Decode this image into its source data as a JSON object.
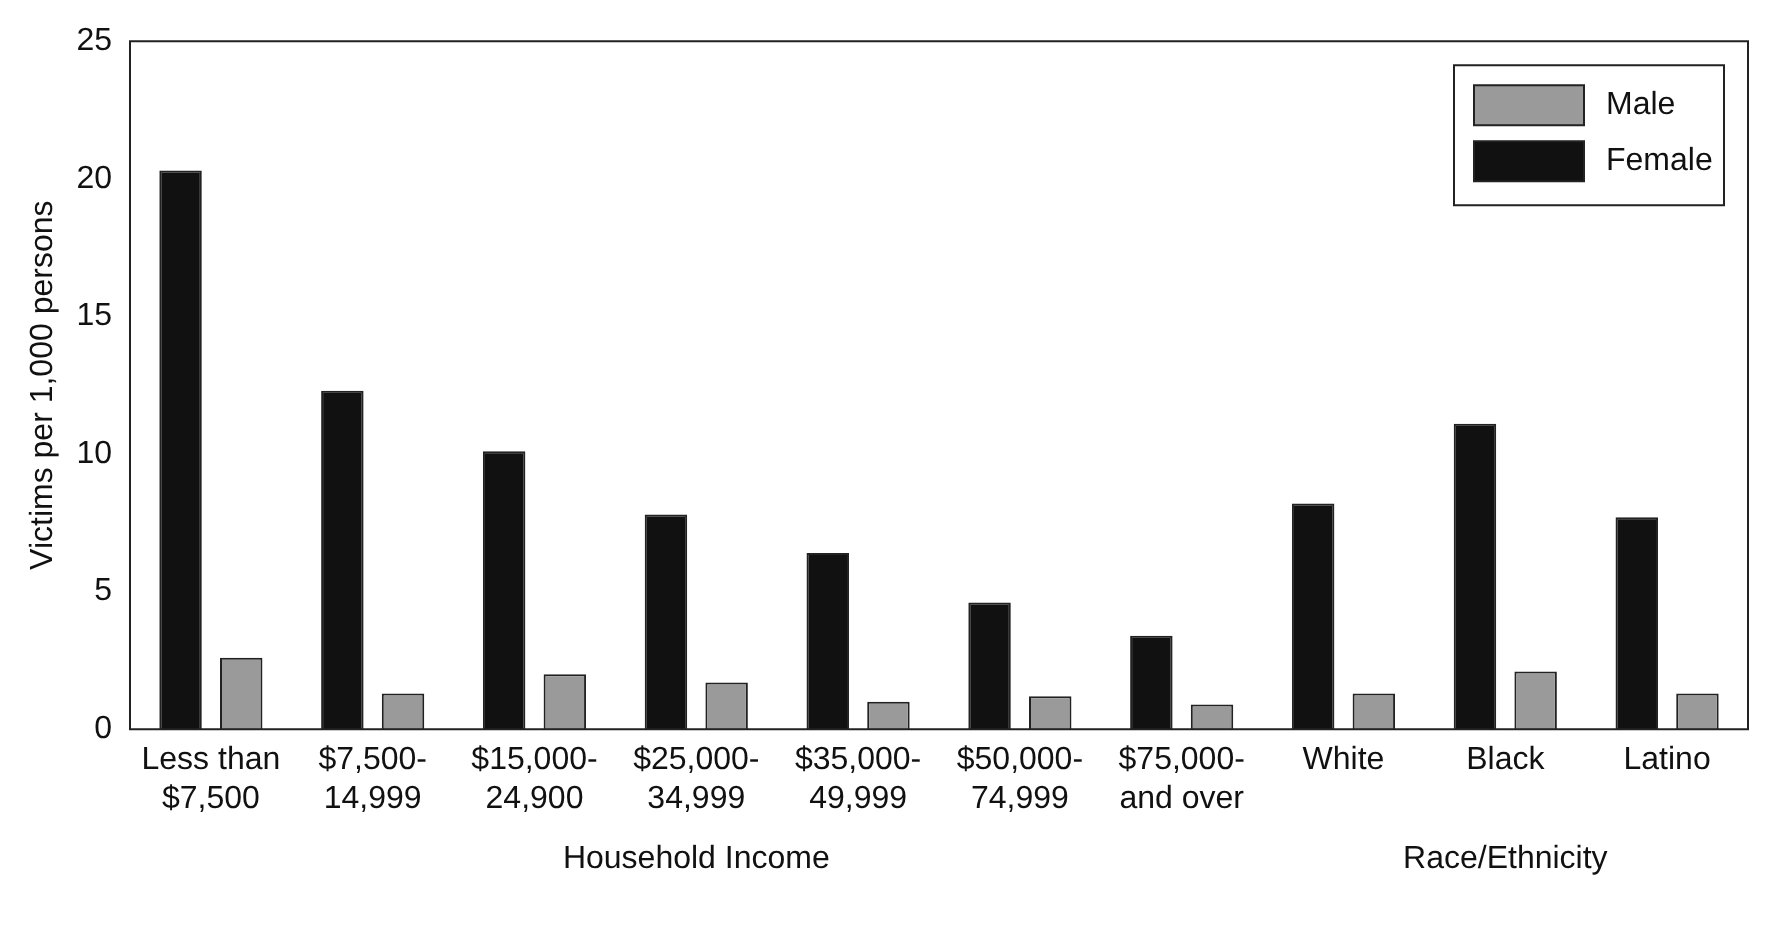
{
  "chart_data": {
    "type": "bar",
    "ylabel": "Victims per 1,000 persons",
    "categories": [
      "Less than\n$7,500",
      "$7,500-\n14,999",
      "$15,000-\n24,900",
      "$25,000-\n34,999",
      "$35,000-\n49,999",
      "$50,000-\n74,999",
      "$75,000-\nand over",
      "White",
      "Black",
      "Latino"
    ],
    "series": [
      {
        "name": "Female",
        "color": "#111111",
        "values": [
          20.3,
          12.3,
          10.1,
          7.8,
          6.4,
          4.6,
          3.4,
          8.2,
          11.1,
          7.7
        ]
      },
      {
        "name": "Male",
        "color": "#9a9a9a",
        "values": [
          2.6,
          1.3,
          2.0,
          1.7,
          1.0,
          1.2,
          0.9,
          1.3,
          2.1,
          1.3
        ]
      }
    ],
    "ylim": [
      0,
      25
    ],
    "yticks": [
      0,
      5,
      10,
      15,
      20,
      25
    ],
    "grid": false,
    "legend": "top right",
    "annotations": [
      "Household Income",
      "Race/Ethnicity"
    ]
  }
}
